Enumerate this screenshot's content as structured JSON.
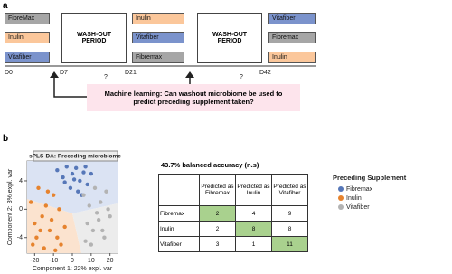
{
  "panel_labels": [
    "a",
    "b"
  ],
  "diagram": {
    "columns": [
      [
        {
          "label": "FibreMax",
          "color": "#a6a6a6"
        },
        {
          "label": "Inulin",
          "color": "#fbc79b"
        },
        {
          "label": "Vitafiber",
          "color": "#7b93cc"
        }
      ],
      [
        {
          "label": "Inulin",
          "color": "#fbc79b"
        },
        {
          "label": "Vitafiber",
          "color": "#7b93cc"
        },
        {
          "label": "Fibremax",
          "color": "#a6a6a6"
        }
      ],
      [
        {
          "label": "Vitafiber",
          "color": "#7b93cc"
        },
        {
          "label": "Fibremax",
          "color": "#a6a6a6"
        },
        {
          "label": "Inulin",
          "color": "#fbc79b"
        }
      ]
    ],
    "washouts": [
      [
        "WASH-OUT",
        "PERIOD"
      ],
      [
        "WASH-OUT",
        "PERIOD"
      ]
    ],
    "days": [
      "D0",
      "D7",
      "D21",
      "D42"
    ],
    "question_marks": [
      "?",
      "?"
    ],
    "question": [
      "Machine learning: Can washout microbiome be used to",
      "predict preceding supplement taken?"
    ]
  },
  "chart_data": {
    "type": "scatter",
    "title": "sPLS-DA: Preceding microbiome",
    "xlabel": "Component 1: 22% expl. var",
    "ylabel": "Component 2: 3% expl. var",
    "xlim": [
      -24,
      24
    ],
    "ylim": [
      -6.2,
      6.8
    ],
    "xticks": [
      -20,
      -10,
      0,
      10,
      20
    ],
    "yticks": [
      -4,
      0,
      4
    ],
    "legend_title": "Preceding Supplement",
    "series": [
      {
        "name": "Fibremax",
        "color": "#5677b8",
        "x": [
          -8,
          -5,
          -3,
          0,
          2,
          4,
          6,
          8,
          10,
          -1,
          3,
          7,
          -4,
          5,
          1
        ],
        "y": [
          5.5,
          4.5,
          6,
          5,
          5.8,
          4,
          5.2,
          3.5,
          5,
          3,
          2.5,
          6,
          3.8,
          2,
          4.2
        ]
      },
      {
        "name": "Inulin",
        "color": "#e6832e",
        "x": [
          -22,
          -20,
          -18,
          -16,
          -14,
          -12,
          -10,
          -8,
          -6,
          -19,
          -15,
          -11,
          -7,
          -4,
          -13,
          -17,
          -9,
          -21
        ],
        "y": [
          1,
          -2,
          3,
          -1,
          0.5,
          -3,
          2,
          -4,
          -5,
          -4,
          -5.5,
          -1.5,
          0,
          -2.5,
          2.5,
          -3,
          -5.8,
          -5
        ]
      },
      {
        "name": "Vitafiber",
        "color": "#b3b3b3",
        "x": [
          6,
          9,
          12,
          15,
          18,
          20,
          8,
          11,
          14,
          17,
          10,
          13,
          16,
          19,
          7
        ],
        "y": [
          2,
          0.5,
          3,
          1,
          2.5,
          -1,
          -2,
          -3,
          -1.5,
          -4,
          -5,
          -0.5,
          -3,
          0,
          -4.5
        ]
      }
    ]
  },
  "table": {
    "caption": "43.7% balanced accuracy (n.s)",
    "header": [
      "Predicted as Fibremax",
      "Predicted as Inulin",
      "Predicted as Vitafiber"
    ],
    "rows": [
      {
        "label": "Fibremax",
        "cells": [
          2,
          4,
          9
        ]
      },
      {
        "label": "Inulin",
        "cells": [
          2,
          8,
          8
        ]
      },
      {
        "label": "Vitafiber",
        "cells": [
          3,
          1,
          11
        ]
      }
    ]
  }
}
